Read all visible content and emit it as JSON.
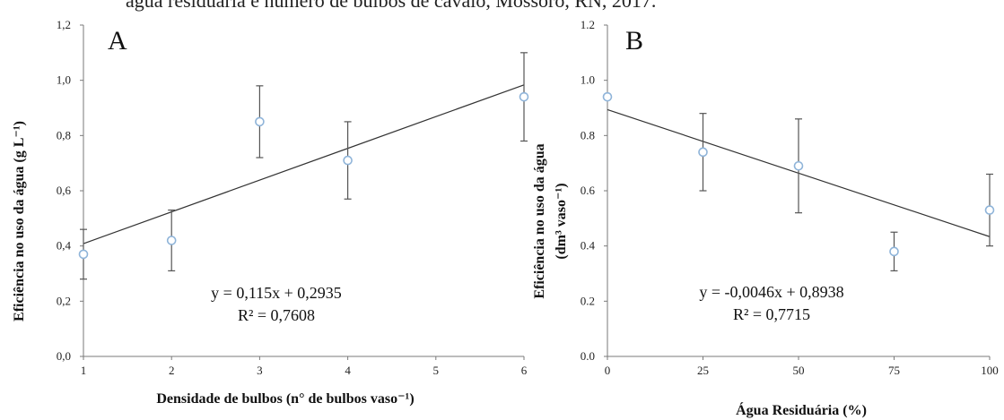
{
  "caption_fragment": "água residuária e número de bulbos de cavalo, Mossoró, RN, 2017.",
  "chart_data": [
    {
      "type": "scatter",
      "panel_label": "A",
      "xlabel": "Densidade de bulbos (n° de bulbos vaso⁻¹)",
      "ylabel": "Eficiência no uso da água (g L⁻¹)",
      "xlim": [
        1,
        6
      ],
      "ylim": [
        0,
        1.2
      ],
      "x_ticks": [
        "1",
        "2",
        "3",
        "4",
        "5",
        "6"
      ],
      "y_ticks": [
        "0,0",
        "0,2",
        "0,4",
        "0,6",
        "0,8",
        "1,0",
        "1,2"
      ],
      "points": [
        {
          "x": 1,
          "y": 0.37,
          "err": 0.09
        },
        {
          "x": 2,
          "y": 0.42,
          "err": 0.11
        },
        {
          "x": 3,
          "y": 0.85,
          "err": 0.13
        },
        {
          "x": 4,
          "y": 0.71,
          "err": 0.14
        },
        {
          "x": 6,
          "y": 0.94,
          "err": 0.16
        }
      ],
      "trendline": {
        "slope": 0.115,
        "intercept": 0.2935
      },
      "equation": "y = 0,115x + 0,2935",
      "r2": "R² = 0,7608"
    },
    {
      "type": "scatter",
      "panel_label": "B",
      "xlabel": "Água Residuária (%)",
      "ylabel": "Eficiência no uso da água",
      "ylabel2": "(dm³ vaso⁻¹)",
      "xlim": [
        0,
        100
      ],
      "ylim": [
        0,
        1.2
      ],
      "x_ticks": [
        "0",
        "25",
        "50",
        "75",
        "100"
      ],
      "y_ticks": [
        "0.0",
        "0.2",
        "0.4",
        "0.6",
        "0.8",
        "1.0",
        "1.2"
      ],
      "points": [
        {
          "x": 0,
          "y": 0.94,
          "err": 0
        },
        {
          "x": 25,
          "y": 0.74,
          "err": 0.14
        },
        {
          "x": 50,
          "y": 0.69,
          "err": 0.17
        },
        {
          "x": 75,
          "y": 0.38,
          "err": 0.07
        },
        {
          "x": 100,
          "y": 0.53,
          "err": 0.13
        }
      ],
      "trendline": {
        "slope": -0.0046,
        "intercept": 0.8938
      },
      "equation": "y = -0,0046x + 0,8938",
      "r2": "R² = 0,7715"
    }
  ],
  "colors": {
    "marker": "#8fb4d9",
    "errorbar": "#555555",
    "trend": "#333333",
    "axis": "#7a7a7a"
  }
}
